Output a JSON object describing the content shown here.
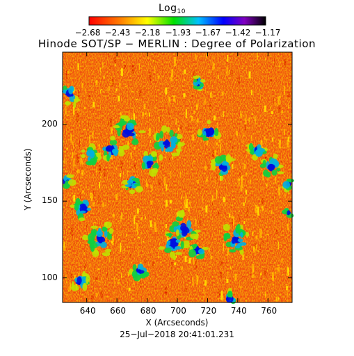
{
  "colorbar": {
    "title_main": "Log",
    "title_sub": "10",
    "tick_labels": [
      "−2.68",
      "−2.43",
      "−2.18",
      "−1.93",
      "−1.67",
      "−1.42",
      "−1.17"
    ],
    "colors": [
      "#ff0000",
      "#ff8000",
      "#ffff00",
      "#00e000",
      "#00c0ff",
      "#0000ff",
      "#8000c0",
      "#000000"
    ]
  },
  "title": "Hinode SOT/SP − MERLIN : Degree of Polarization",
  "x_axis": {
    "label": "X (Arcseconds)",
    "ticks": [
      640,
      660,
      680,
      700,
      720,
      740,
      760
    ],
    "range": [
      624,
      776
    ]
  },
  "y_axis": {
    "label": "Y (Arcseconds)",
    "ticks": [
      100,
      150,
      200
    ],
    "range": [
      84,
      247
    ]
  },
  "timestamp": "25−Jul−2018 20:41:01.231"
}
